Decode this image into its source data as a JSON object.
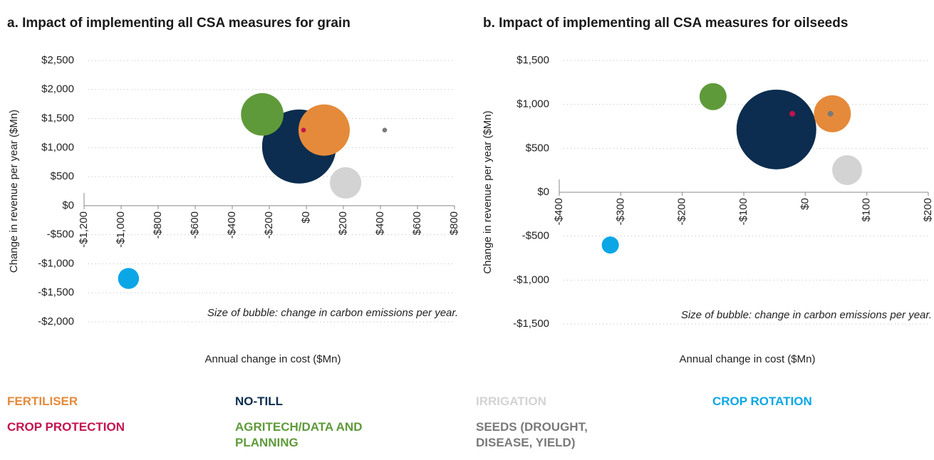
{
  "chart_data": [
    {
      "type": "bubble",
      "title": "a. Impact of implementing all CSA measures for grain",
      "x_label": "Annual change in cost ($Mn)",
      "y_label": "Change in revenue per year ($Mn)",
      "annotation": "Size of bubble: change in carbon emissions per year.",
      "xlim": [
        -1200,
        800
      ],
      "xticks": [
        {
          "value": -1200,
          "label": "-$1,200"
        },
        {
          "value": -1000,
          "label": "-$1,000"
        },
        {
          "value": -800,
          "label": "-$800"
        },
        {
          "value": -600,
          "label": "-$600"
        },
        {
          "value": -400,
          "label": "-$400"
        },
        {
          "value": -200,
          "label": "-$200"
        },
        {
          "value": 0,
          "label": "$0"
        },
        {
          "value": 200,
          "label": "$200"
        },
        {
          "value": 400,
          "label": "$400"
        },
        {
          "value": 600,
          "label": "$600"
        },
        {
          "value": 800,
          "label": "$800"
        }
      ],
      "ylim": [
        -2000,
        2500
      ],
      "yticks": [
        {
          "value": -2000,
          "label": "-$2,000"
        },
        {
          "value": -1500,
          "label": "-$1,500"
        },
        {
          "value": -1000,
          "label": "-$1,000"
        },
        {
          "value": -500,
          "label": "-$500"
        },
        {
          "value": 0,
          "label": "$0"
        },
        {
          "value": 500,
          "label": "$500"
        },
        {
          "value": 1000,
          "label": "$1,000"
        },
        {
          "value": 1500,
          "label": "$1,500"
        },
        {
          "value": 2000,
          "label": "$2,000"
        },
        {
          "value": 2500,
          "label": "$2,500"
        }
      ],
      "grid": true,
      "series": [
        {
          "name": "FERTILISER",
          "color": "#e58a3a",
          "x": [
            96
          ],
          "values": [
            1302
          ],
          "sizes": [
            48
          ]
        },
        {
          "name": "NO-TILL",
          "color": "#0c2d4f",
          "x": [
            -39
          ],
          "values": [
            1020
          ],
          "sizes": [
            100
          ]
        },
        {
          "name": "IRRIGATION",
          "color": "#d3d3d3",
          "x": [
            212
          ],
          "values": [
            393
          ],
          "sizes": [
            18
          ]
        },
        {
          "name": "CROP ROTATION",
          "color": "#0aa6e6",
          "x": [
            -960
          ],
          "values": [
            -1253
          ],
          "sizes": [
            8
          ]
        },
        {
          "name": "CROP PROTECTION",
          "color": "#c4124f",
          "x": [
            -15
          ],
          "values": [
            1302
          ],
          "sizes": [
            0.4
          ]
        },
        {
          "name": "AGRITECH/DATA AND PLANNING",
          "color": "#5f9a3a",
          "x": [
            -238
          ],
          "values": [
            1572
          ],
          "sizes": [
            33
          ]
        },
        {
          "name": "SEEDS (DROUGHT, DISEASE, YIELD)",
          "color": "#7a7a7a",
          "x": [
            423
          ],
          "values": [
            1302
          ],
          "sizes": [
            0.4
          ]
        }
      ]
    },
    {
      "type": "bubble",
      "title": "b. Impact of implementing all CSA measures for oilseeds",
      "x_label": "Annual change in cost ($Mn)",
      "y_label": "Change in revenue per year ($Mn)",
      "annotation": "Size of bubble: change in carbon emissions per year.",
      "xlim": [
        -400,
        200
      ],
      "xticks": [
        {
          "value": -400,
          "label": "-$400"
        },
        {
          "value": -300,
          "label": "-$300"
        },
        {
          "value": -200,
          "label": "-$200"
        },
        {
          "value": -100,
          "label": "-$100"
        },
        {
          "value": 0,
          "label": "$0"
        },
        {
          "value": 100,
          "label": "$100"
        },
        {
          "value": 200,
          "label": "$200"
        }
      ],
      "ylim": [
        -1500,
        1500
      ],
      "yticks": [
        {
          "value": -1500,
          "label": "-$1,500"
        },
        {
          "value": -1000,
          "label": "-$1,000"
        },
        {
          "value": -500,
          "label": "-$500"
        },
        {
          "value": 0,
          "label": "$0"
        },
        {
          "value": 500,
          "label": "$500"
        },
        {
          "value": 1000,
          "label": "$1,000"
        },
        {
          "value": 1500,
          "label": "$1,500"
        }
      ],
      "grid": true,
      "series": [
        {
          "color": "#e58a3a",
          "x": [
            44
          ],
          "values": [
            894
          ],
          "sizes": [
            21.5
          ]
        },
        {
          "color": "#0c2d4f",
          "x": [
            -47
          ],
          "values": [
            715
          ],
          "sizes": [
            100
          ]
        },
        {
          "color": "#d3d3d3",
          "x": [
            68
          ],
          "values": [
            252
          ],
          "sizes": [
            14
          ]
        },
        {
          "color": "#0aa6e6",
          "x": [
            -317
          ],
          "values": [
            -601
          ],
          "sizes": [
            4.6
          ]
        },
        {
          "color": "#c4124f",
          "x": [
            -21
          ],
          "values": [
            894
          ],
          "sizes": [
            0.5
          ]
        },
        {
          "color": "#5f9a3a",
          "x": [
            -150
          ],
          "values": [
            1089
          ],
          "sizes": [
            11.5
          ]
        },
        {
          "color": "#7a7a7a",
          "x": [
            41
          ],
          "values": [
            894
          ],
          "sizes": [
            0.5
          ]
        }
      ]
    }
  ]
}
